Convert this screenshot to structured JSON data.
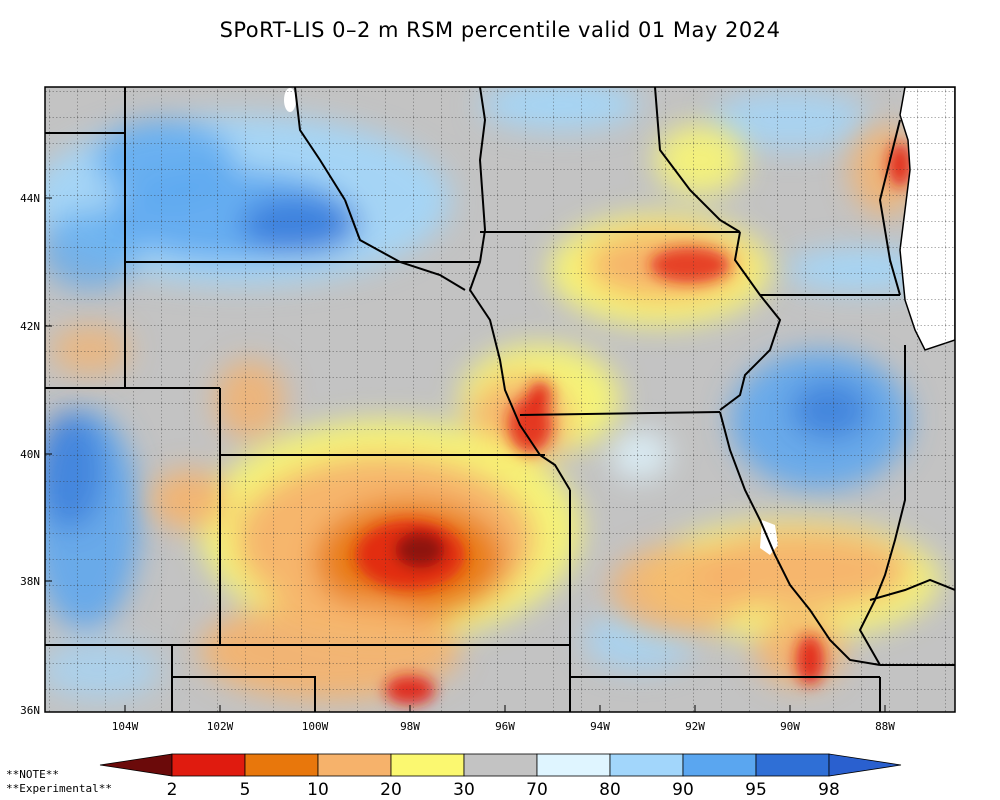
{
  "title": "SPoRT-LIS 0–2 m RSM percentile valid 01 May 2024",
  "lat_labels": [
    "44N",
    "42N",
    "40N",
    "38N",
    "36N"
  ],
  "lon_labels": [
    "104W",
    "102W",
    "100W",
    "98W",
    "96W",
    "94W",
    "92W",
    "90W",
    "88W"
  ],
  "colorbar": {
    "tick_labels": [
      "2",
      "5",
      "10",
      "20",
      "30",
      "70",
      "80",
      "90",
      "95",
      "98"
    ],
    "colors": [
      "#6b0a0a",
      "#e01b0f",
      "#e8770c",
      "#f6b26b",
      "#fbf870",
      "#c3c3c3",
      "#dff5ff",
      "#a2d6fb",
      "#5aa6f0",
      "#2f6fd6",
      "#2a60cf"
    ]
  },
  "notes": {
    "note": "**NOTE**",
    "experimental": "**Experimental**"
  }
}
